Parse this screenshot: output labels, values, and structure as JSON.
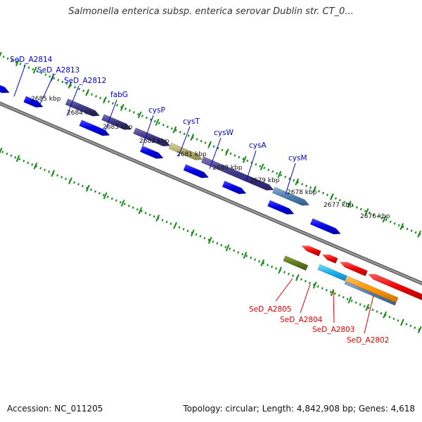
{
  "title": "Salmonella enterica subsp. enterica serovar Dublin str. CT_0...",
  "footer": {
    "accession": "Accession: NC_011205",
    "summary": "Topology: circular; Length: 4,842,908 bp; Genes: 4,618"
  },
  "colors": {
    "forward_label": "#0000cc",
    "reverse_label": "#dd0000",
    "backbone": "#777777",
    "tick": "#1a8a1a"
  },
  "kbp_labels": [
    "2685 kbp",
    "2684 kbp",
    "2683 kbp",
    "2682 kbp",
    "2681 kbp",
    "2680 kbp",
    "2679 kbp",
    "2678 kbp",
    "2677 kbp",
    "2676 kbp"
  ],
  "forward_gene_labels": [
    "SeD_A2814",
    "SeD_A2813",
    "SeD_A2812",
    "fabG",
    "cysP",
    "cysT",
    "cysW",
    "cysA",
    "cysM"
  ],
  "reverse_gene_labels": [
    "SeD_A2805",
    "SeD_A2804",
    "SeD_A2803",
    "SeD_A2802"
  ]
}
